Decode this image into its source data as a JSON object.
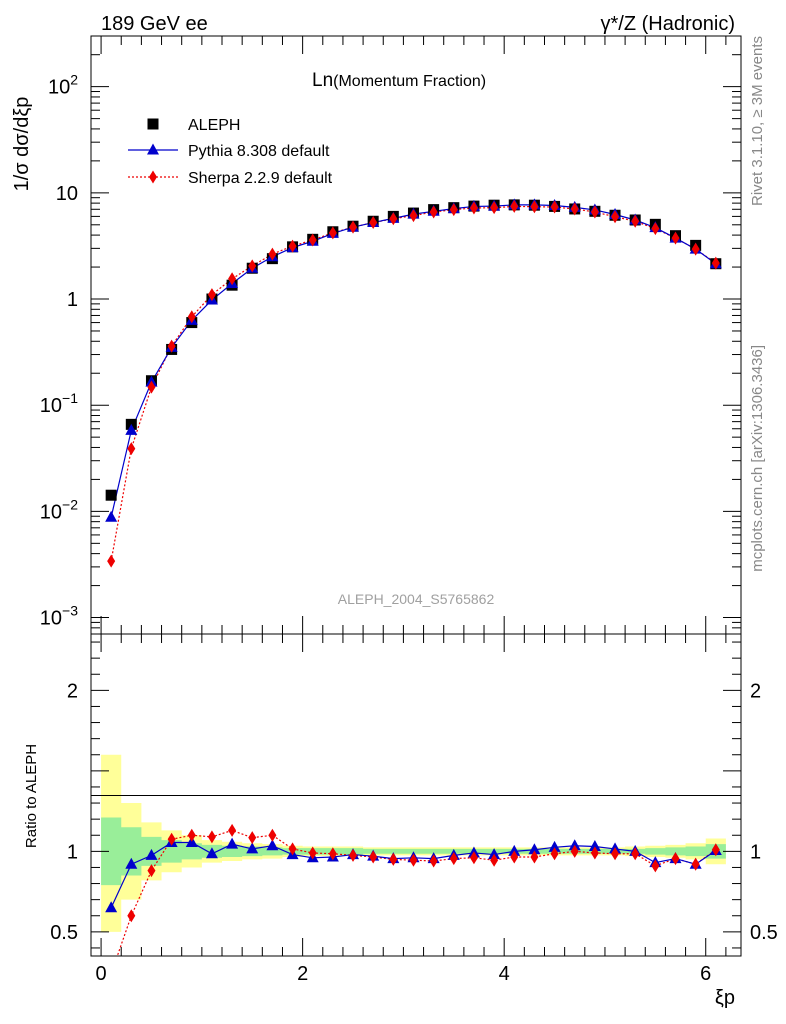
{
  "header": {
    "left": "189 GeV ee",
    "right": "γ*/Z (Hadronic)"
  },
  "side_labels": {
    "rivet": "Rivet 3.1.10, ≥ 3M events",
    "mcplots": "mcplots.cern.ch [arXiv:1306.3436]"
  },
  "chart_data": {
    "type": "line",
    "title_main": "Ln",
    "title_sub": "(Momentum Fraction)",
    "analysis_tag": "ALEPH_2004_S5765862",
    "ylabel": "1/σ dσ/dξp",
    "ratio_ylabel": "Ratio to ALEPH",
    "xlabel": "ξp",
    "xlim": [
      -0.1,
      6.35
    ],
    "ylim": [
      0.0007,
      300
    ],
    "y_scale": "log",
    "ratio_ylim": [
      0.35,
      2.35
    ],
    "x_ticks": [
      "0",
      "2",
      "4",
      "6"
    ],
    "y_ticks": [
      "10^-3",
      "10^-2",
      "10^-1",
      "1",
      "10",
      "10^2"
    ],
    "ratio_ticks": [
      "0.5",
      "1",
      "2"
    ],
    "legend_position": "top-left",
    "x": [
      0.1,
      0.3,
      0.5,
      0.7,
      0.9,
      1.1,
      1.3,
      1.5,
      1.7,
      1.9,
      2.1,
      2.3,
      2.5,
      2.7,
      2.9,
      3.1,
      3.3,
      3.5,
      3.7,
      3.9,
      4.1,
      4.3,
      4.5,
      4.7,
      4.9,
      5.1,
      5.3,
      5.5,
      5.7,
      5.9,
      6.1
    ],
    "series": [
      {
        "name": "ALEPH",
        "color": "#000000",
        "marker": "square",
        "values": [
          0.0142,
          0.066,
          0.17,
          0.335,
          0.6,
          1.0,
          1.35,
          1.95,
          2.4,
          3.1,
          3.65,
          4.3,
          4.85,
          5.4,
          6.0,
          6.45,
          6.95,
          7.25,
          7.5,
          7.65,
          7.7,
          7.65,
          7.45,
          7.05,
          6.7,
          6.15,
          5.55,
          5.05,
          3.95,
          3.2,
          2.15
        ],
        "band_green_lo": [
          0.79,
          0.85,
          0.91,
          0.93,
          0.95,
          0.96,
          0.965,
          0.97,
          0.975,
          0.98,
          0.98,
          0.98,
          0.98,
          0.985,
          0.985,
          0.985,
          0.985,
          0.985,
          0.985,
          0.985,
          0.985,
          0.985,
          0.985,
          0.985,
          0.985,
          0.985,
          0.985,
          0.98,
          0.975,
          0.97,
          0.955
        ],
        "band_green_hi": [
          1.21,
          1.15,
          1.09,
          1.07,
          1.05,
          1.04,
          1.035,
          1.03,
          1.025,
          1.02,
          1.02,
          1.02,
          1.02,
          1.015,
          1.015,
          1.015,
          1.015,
          1.015,
          1.015,
          1.015,
          1.015,
          1.015,
          1.015,
          1.015,
          1.015,
          1.015,
          1.015,
          1.02,
          1.025,
          1.03,
          1.045
        ],
        "band_yellow_lo": [
          0.5,
          0.7,
          0.82,
          0.87,
          0.9,
          0.93,
          0.94,
          0.95,
          0.955,
          0.965,
          0.97,
          0.97,
          0.97,
          0.975,
          0.975,
          0.975,
          0.975,
          0.975,
          0.975,
          0.975,
          0.975,
          0.975,
          0.975,
          0.975,
          0.975,
          0.975,
          0.97,
          0.965,
          0.96,
          0.95,
          0.92
        ],
        "band_yellow_hi": [
          1.6,
          1.3,
          1.18,
          1.13,
          1.1,
          1.07,
          1.06,
          1.05,
          1.045,
          1.035,
          1.03,
          1.03,
          1.03,
          1.025,
          1.025,
          1.025,
          1.025,
          1.025,
          1.025,
          1.025,
          1.025,
          1.025,
          1.025,
          1.025,
          1.025,
          1.025,
          1.03,
          1.035,
          1.04,
          1.05,
          1.08
        ]
      },
      {
        "name": "Pythia 8.308 default",
        "color": "#0000cc",
        "marker": "triangle",
        "line": "solid",
        "values": [
          0.0088,
          0.058,
          0.165,
          0.35,
          0.63,
          0.98,
          1.4,
          1.95,
          2.5,
          3.05,
          3.5,
          4.15,
          4.75,
          5.25,
          5.75,
          6.3,
          6.7,
          7.1,
          7.45,
          7.5,
          7.7,
          7.7,
          7.6,
          7.3,
          6.9,
          6.25,
          5.55,
          4.7,
          3.75,
          2.95,
          2.15
        ],
        "ratio": [
          0.65,
          0.92,
          0.975,
          1.055,
          1.055,
          0.985,
          1.045,
          1.015,
          1.035,
          0.98,
          0.96,
          0.965,
          0.98,
          0.97,
          0.955,
          0.96,
          0.955,
          0.975,
          0.99,
          0.98,
          1.0,
          1.01,
          1.025,
          1.035,
          1.03,
          1.015,
          1.0,
          0.93,
          0.955,
          0.92,
          1.005
        ]
      },
      {
        "name": "Sherpa 2.2.9 default",
        "color": "#ee0000",
        "marker": "diamond",
        "line": "dotted",
        "values": [
          0.0034,
          0.039,
          0.148,
          0.36,
          0.68,
          1.1,
          1.55,
          2.05,
          2.65,
          3.15,
          3.6,
          4.2,
          4.75,
          5.25,
          5.7,
          6.1,
          6.6,
          6.95,
          7.2,
          7.25,
          7.45,
          7.4,
          7.35,
          7.05,
          6.6,
          5.95,
          5.4,
          4.6,
          3.75,
          2.95,
          2.18
        ],
        "ratio": [
          0.24,
          0.6,
          0.88,
          1.075,
          1.1,
          1.09,
          1.13,
          1.085,
          1.1,
          1.015,
          0.99,
          0.985,
          0.975,
          0.965,
          0.95,
          0.945,
          0.94,
          0.955,
          0.96,
          0.945,
          0.965,
          0.965,
          0.985,
          1.0,
          0.99,
          0.985,
          0.985,
          0.91,
          0.955,
          0.92,
          1.01
        ]
      }
    ]
  }
}
